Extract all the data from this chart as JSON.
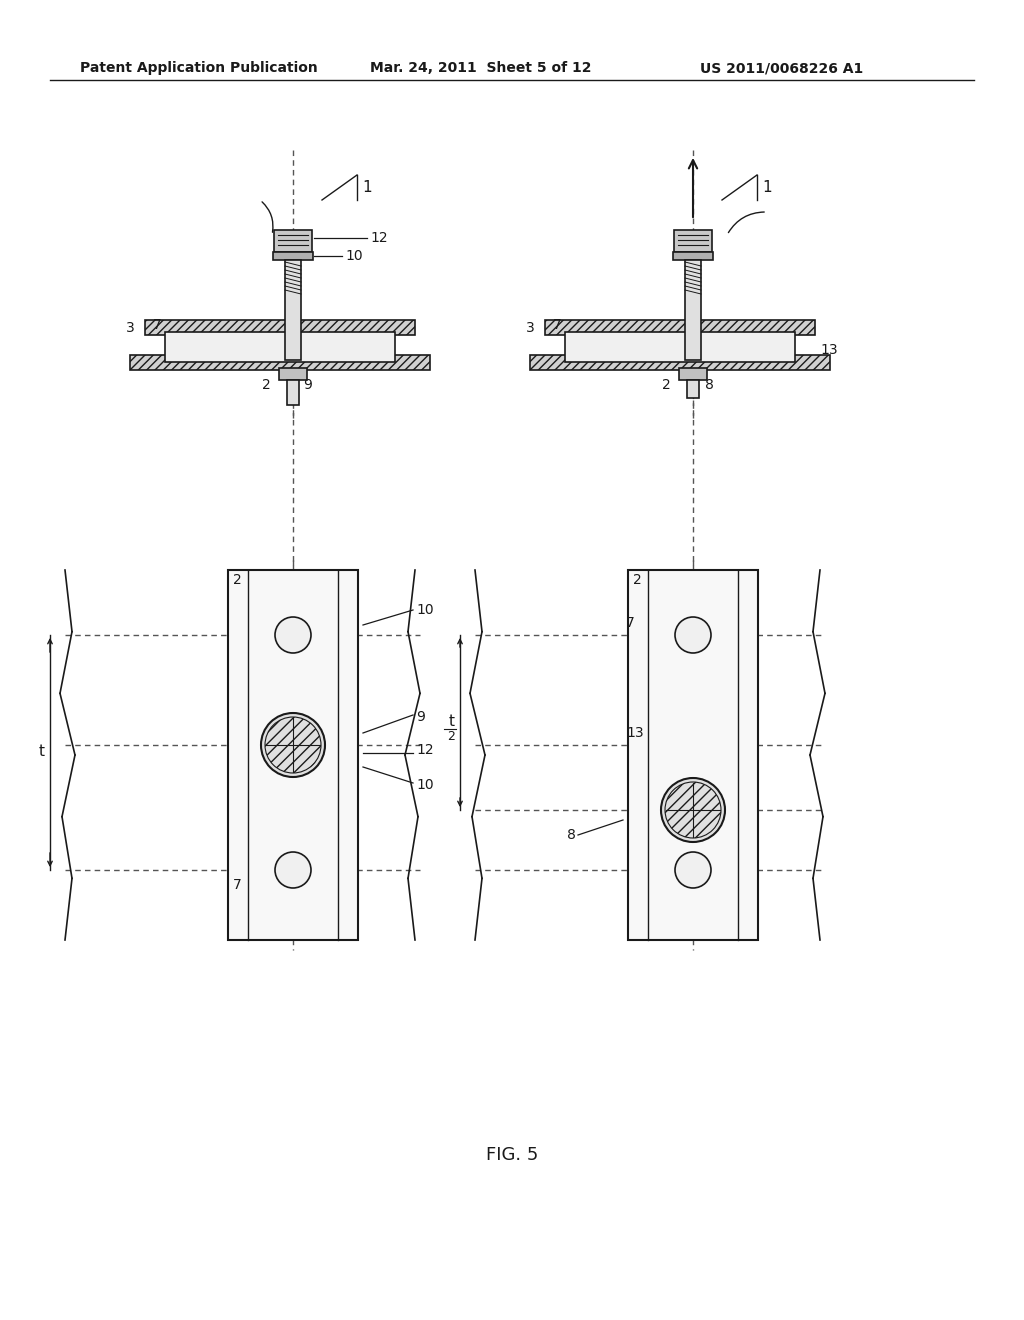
{
  "bg_color": "#ffffff",
  "header_left": "Patent Application Publication",
  "header_mid": "Mar. 24, 2011  Sheet 5 of 12",
  "header_right": "US 2011/0068226 A1",
  "fig_label": "FIG. 5",
  "line_color": "#1a1a1a",
  "hatch_color": "#1a1a1a",
  "dash_color": "#555555"
}
